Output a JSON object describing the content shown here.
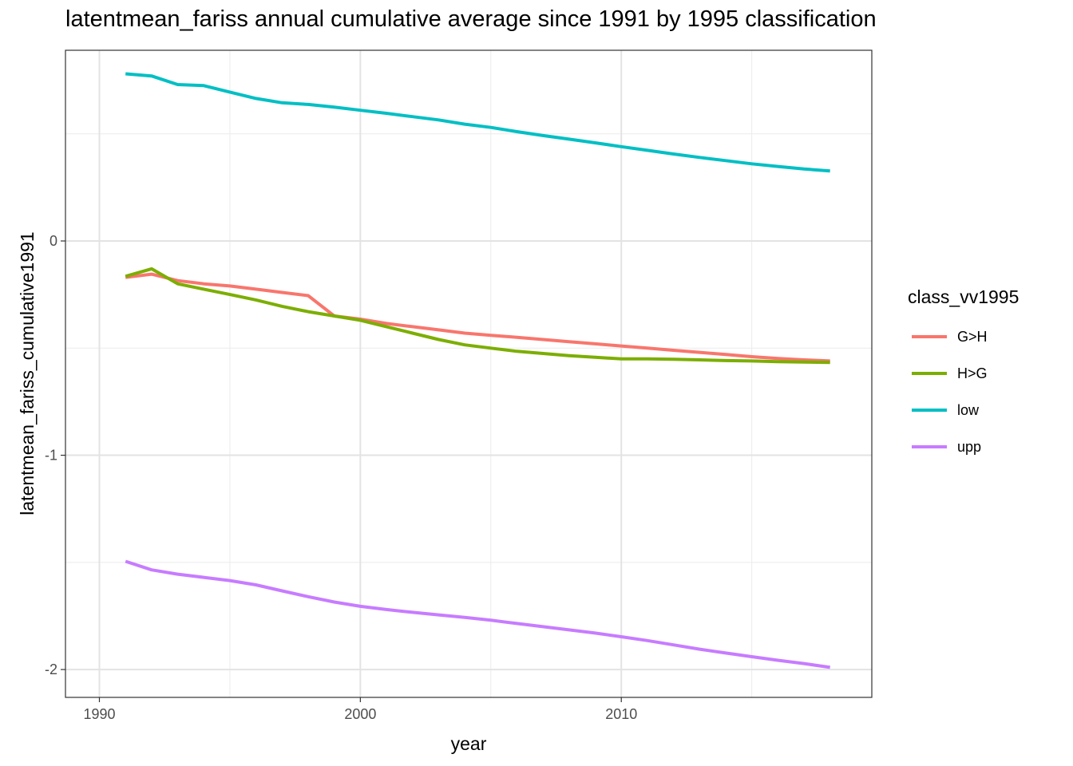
{
  "chart_data": {
    "type": "line",
    "title": "latentmean_fariss annual cumulative average since 1991 by 1995 classification",
    "xlabel": "year",
    "ylabel": "latentmean_fariss_cumulative1991",
    "xlim": [
      1988.7,
      2019.6
    ],
    "ylim": [
      -2.13,
      0.89
    ],
    "x_ticks": [
      1990,
      2000,
      2010
    ],
    "y_ticks": [
      -2,
      -1,
      0
    ],
    "grid": true,
    "legend_title": "class_vv1995",
    "legend_position": "right",
    "x": [
      1991,
      1992,
      1993,
      1994,
      1995,
      1996,
      1997,
      1998,
      1999,
      2000,
      2001,
      2002,
      2003,
      2004,
      2005,
      2006,
      2007,
      2008,
      2009,
      2010,
      2011,
      2012,
      2013,
      2014,
      2015,
      2016,
      2017,
      2018
    ],
    "series": [
      {
        "name": "G>H",
        "color": "#F8766D",
        "values": [
          -0.17,
          -0.155,
          -0.185,
          -0.2,
          -0.21,
          -0.225,
          -0.24,
          -0.255,
          -0.35,
          -0.365,
          -0.385,
          -0.4,
          -0.415,
          -0.43,
          -0.44,
          -0.45,
          -0.46,
          -0.47,
          -0.48,
          -0.49,
          -0.5,
          -0.51,
          -0.52,
          -0.53,
          -0.54,
          -0.548,
          -0.555,
          -0.56
        ]
      },
      {
        "name": "H>G",
        "color": "#7CAE00",
        "values": [
          -0.165,
          -0.13,
          -0.2,
          -0.225,
          -0.25,
          -0.275,
          -0.305,
          -0.33,
          -0.35,
          -0.37,
          -0.4,
          -0.43,
          -0.46,
          -0.485,
          -0.5,
          -0.515,
          -0.525,
          -0.535,
          -0.543,
          -0.55,
          -0.55,
          -0.552,
          -0.555,
          -0.558,
          -0.56,
          -0.563,
          -0.565,
          -0.567
        ]
      },
      {
        "name": "low",
        "color": "#00BFC4",
        "values": [
          0.78,
          0.77,
          0.73,
          0.725,
          0.695,
          0.665,
          0.645,
          0.637,
          0.625,
          0.61,
          0.596,
          0.58,
          0.565,
          0.545,
          0.53,
          0.51,
          0.492,
          0.475,
          0.458,
          0.44,
          0.423,
          0.406,
          0.39,
          0.375,
          0.36,
          0.348,
          0.336,
          0.327
        ]
      },
      {
        "name": "upp",
        "color": "#C77CFF",
        "values": [
          -1.495,
          -1.535,
          -1.555,
          -1.57,
          -1.585,
          -1.605,
          -1.633,
          -1.66,
          -1.685,
          -1.705,
          -1.72,
          -1.733,
          -1.745,
          -1.757,
          -1.77,
          -1.785,
          -1.8,
          -1.815,
          -1.83,
          -1.847,
          -1.865,
          -1.885,
          -1.905,
          -1.923,
          -1.94,
          -1.957,
          -1.972,
          -1.99
        ]
      }
    ]
  }
}
